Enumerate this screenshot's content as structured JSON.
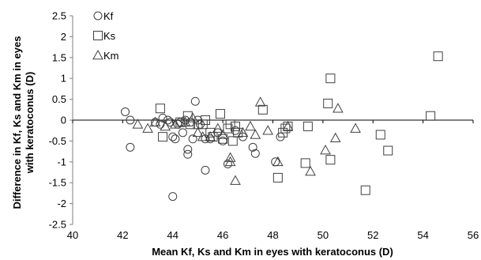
{
  "chart_data": {
    "type": "scatter",
    "xlabel": "Mean Kf, Ks and Km in eyes with keratoconus (D)",
    "ylabel": "Difference in Kf, Ks and Km in eyes with keratoconus (D)",
    "ylabel_lines": [
      "Difference in Kf, Ks and Km in eyes",
      "with keratoconus (D)"
    ],
    "xlim": [
      40,
      56
    ],
    "ylim": [
      -2.5,
      2.5
    ],
    "x_ticks": [
      40,
      42,
      44,
      46,
      48,
      50,
      52,
      54,
      56
    ],
    "x_tick_labels": [
      "40",
      "42",
      "44",
      "46",
      "48",
      "50",
      "52",
      "54",
      "56"
    ],
    "y_ticks": [
      2.5,
      2,
      1.5,
      1,
      0.5,
      0,
      -0.5,
      -1,
      -1.5,
      -2,
      -2.5
    ],
    "y_tick_labels": [
      "2.5",
      "2",
      "1.5",
      "1",
      "0.5",
      "0",
      "-0.5",
      "-1",
      "-1.5",
      "-2",
      "-2.5"
    ],
    "grid": false,
    "legend_position": "top-left",
    "series": [
      {
        "name": "Kf",
        "marker": "circle",
        "points": [
          [
            42.1,
            0.2
          ],
          [
            42.3,
            0.0
          ],
          [
            42.3,
            -0.65
          ],
          [
            43.3,
            -0.05
          ],
          [
            43.5,
            -0.1
          ],
          [
            43.6,
            0.05
          ],
          [
            43.8,
            0.0
          ],
          [
            43.9,
            -0.05
          ],
          [
            44.0,
            -0.4
          ],
          [
            44.1,
            -0.45
          ],
          [
            44.0,
            -1.83
          ],
          [
            44.2,
            -0.1
          ],
          [
            44.3,
            -0.05
          ],
          [
            44.4,
            -0.3
          ],
          [
            44.5,
            0.0
          ],
          [
            44.6,
            -0.82
          ],
          [
            44.6,
            -0.7
          ],
          [
            44.7,
            -0.05
          ],
          [
            44.8,
            -0.45
          ],
          [
            44.9,
            0.45
          ],
          [
            45.0,
            0.0
          ],
          [
            45.1,
            -0.1
          ],
          [
            45.3,
            -0.45
          ],
          [
            45.3,
            -1.2
          ],
          [
            45.5,
            -0.45
          ],
          [
            45.8,
            -0.3
          ],
          [
            46.0,
            -0.5
          ],
          [
            46.2,
            -1.05
          ],
          [
            46.5,
            -0.25
          ],
          [
            46.8,
            -0.4
          ],
          [
            47.2,
            -0.65
          ],
          [
            47.3,
            -0.8
          ],
          [
            48.1,
            -1.0
          ],
          [
            48.3,
            -0.4
          ]
        ]
      },
      {
        "name": "Ks",
        "marker": "square",
        "points": [
          [
            43.5,
            0.28
          ],
          [
            43.6,
            -0.4
          ],
          [
            44.3,
            -0.05
          ],
          [
            44.6,
            0.1
          ],
          [
            44.7,
            -0.1
          ],
          [
            45.0,
            -0.1
          ],
          [
            45.2,
            -0.1
          ],
          [
            45.3,
            0.0
          ],
          [
            45.5,
            -0.3
          ],
          [
            45.6,
            -0.4
          ],
          [
            45.9,
            0.15
          ],
          [
            46.0,
            -0.45
          ],
          [
            46.2,
            -0.2
          ],
          [
            46.3,
            -0.1
          ],
          [
            46.4,
            -0.5
          ],
          [
            46.5,
            -0.15
          ],
          [
            46.6,
            -0.3
          ],
          [
            47.6,
            0.25
          ],
          [
            48.2,
            -1.38
          ],
          [
            48.4,
            -0.3
          ],
          [
            48.5,
            -0.2
          ],
          [
            48.6,
            -0.15
          ],
          [
            49.3,
            -1.03
          ],
          [
            49.4,
            -0.15
          ],
          [
            50.2,
            0.4
          ],
          [
            50.3,
            1.0
          ],
          [
            50.3,
            -0.95
          ],
          [
            51.7,
            -1.68
          ],
          [
            52.3,
            -0.35
          ],
          [
            52.6,
            -0.73
          ],
          [
            54.3,
            0.1
          ],
          [
            54.6,
            1.53
          ]
        ]
      },
      {
        "name": "Km",
        "marker": "triangle",
        "points": [
          [
            42.6,
            -0.1
          ],
          [
            43.0,
            -0.2
          ],
          [
            43.3,
            -0.05
          ],
          [
            43.7,
            -0.15
          ],
          [
            44.1,
            -0.1
          ],
          [
            44.5,
            -0.05
          ],
          [
            44.8,
            0.05
          ],
          [
            45.0,
            -0.3
          ],
          [
            45.2,
            -0.4
          ],
          [
            45.5,
            -0.4
          ],
          [
            45.8,
            -0.2
          ],
          [
            46.0,
            -0.35
          ],
          [
            46.3,
            -1.0
          ],
          [
            46.3,
            -0.9
          ],
          [
            46.5,
            -1.45
          ],
          [
            46.8,
            -0.3
          ],
          [
            47.1,
            -0.15
          ],
          [
            47.3,
            -0.35
          ],
          [
            47.5,
            0.43
          ],
          [
            47.8,
            -0.25
          ],
          [
            48.2,
            -1.0
          ],
          [
            48.6,
            -0.15
          ],
          [
            49.5,
            -1.23
          ],
          [
            50.1,
            -0.72
          ],
          [
            50.5,
            -0.43
          ],
          [
            50.6,
            0.28
          ],
          [
            51.3,
            -0.2
          ]
        ]
      }
    ]
  }
}
